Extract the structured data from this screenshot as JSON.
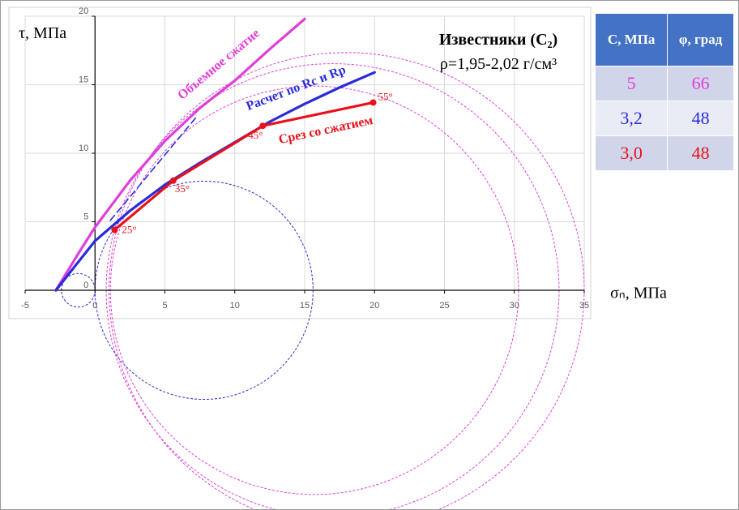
{
  "chart_data": {
    "type": "line",
    "title": "Известняки (С₂)",
    "subtitle": "ρ=1,95-2,02 г/см³",
    "x_label": "σₙ, МПа",
    "y_label": "τ, МПа",
    "xlim": [
      -5,
      35
    ],
    "ylim": [
      0,
      20
    ],
    "xticks": [
      -5,
      0,
      5,
      10,
      15,
      20,
      25,
      30,
      35
    ],
    "yticks": [
      0,
      5,
      10,
      15,
      20
    ],
    "grid": true,
    "series": [
      {
        "name": "Объемное сжатие",
        "color": "#e03fd8",
        "x": [
          -2.8,
          -1,
          0,
          2.5,
          5,
          7.5,
          10,
          12.5,
          15
        ],
        "values": [
          0,
          3,
          4.6,
          8,
          10.9,
          13.3,
          15.3,
          17.6,
          19.8
        ]
      },
      {
        "name": "Расчет по Rc и Rp",
        "color": "#2b2bd9",
        "x": [
          -2.8,
          0,
          2.5,
          5,
          7.5,
          10,
          12.5,
          15,
          17.5,
          20
        ],
        "values": [
          0,
          3.6,
          5.8,
          7.7,
          9.3,
          10.8,
          12.3,
          13.6,
          14.8,
          15.9
        ]
      },
      {
        "name": "Срез со сжатием",
        "color": "#e8121a",
        "markers": true,
        "x": [
          1.4,
          5.6,
          12.0,
          19.9
        ],
        "values": [
          4.4,
          8.0,
          12.0,
          13.7
        ],
        "point_labels": [
          "25°",
          "35°",
          "45°",
          "55°"
        ]
      },
      {
        "color": "#2b2bd9",
        "dashed": true,
        "x": [
          1.1,
          7.3
        ],
        "values": [
          5.1,
          12.7
        ]
      }
    ],
    "circles": [
      {
        "center": -1.2,
        "radius": 1.2,
        "color": "#2b2bd9"
      },
      {
        "center": 7.8,
        "radius": 7.8,
        "color": "#2b2bd9"
      },
      {
        "center": 18.0,
        "radius": 17.0,
        "color": "#e03fd8"
      },
      {
        "center": 17.0,
        "radius": 16.2,
        "color": "#e03fd8"
      },
      {
        "center": 15.7,
        "radius": 14.6,
        "color": "#e03fd8"
      }
    ]
  },
  "table": {
    "columns": [
      "C, МПа",
      "φ, град"
    ],
    "rows": [
      [
        "5",
        "66"
      ],
      [
        "3,2",
        "48"
      ],
      [
        "3,0",
        "48"
      ]
    ],
    "row_colors": [
      "#e03fd8",
      "#2b2bd9",
      "#e8121a"
    ]
  }
}
